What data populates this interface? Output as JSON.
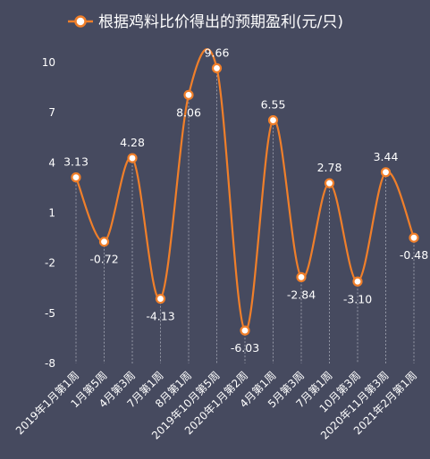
{
  "chart_data": {
    "type": "line",
    "legend": {
      "position": "top",
      "entries": [
        "根据鸡料比价得出的预期盈利(元/只)"
      ]
    },
    "series": [
      {
        "name": "根据鸡料比价得出的预期盈利(元/只)",
        "color": "#f07f2a",
        "smooth": true,
        "values": [
          3.13,
          -0.72,
          4.28,
          -4.13,
          8.06,
          9.66,
          -6.03,
          6.55,
          -2.84,
          2.78,
          -3.1,
          3.44,
          -0.48
        ],
        "value_labels": [
          "3.13",
          "-0.72",
          "4.28",
          "-4.13",
          "8.06",
          "9.66",
          "-6.03",
          "6.55",
          "-2.84",
          "2.78",
          "-3.10",
          "3.44",
          "-0.48"
        ]
      }
    ],
    "categories": [
      "2019年1月第1周",
      "1月第5周",
      "4月第3周",
      "7月第1周",
      "8月第1周",
      "2019年10月第5周",
      "2020年1月第2周",
      "4月第1周",
      "5月第3周",
      "7月第1周",
      "10月第3周",
      "2020年11月第3周",
      "2021年2月第1周"
    ],
    "y_axis": {
      "min": -8,
      "max": 10,
      "ticks": [
        10,
        7,
        4,
        1,
        -2,
        -5,
        -8
      ],
      "tick_labels": [
        "10",
        "7",
        "4",
        "1",
        "-2",
        "-5",
        "-8"
      ]
    },
    "grid": "vertical dashed drop lines",
    "background": "#464a5f"
  }
}
